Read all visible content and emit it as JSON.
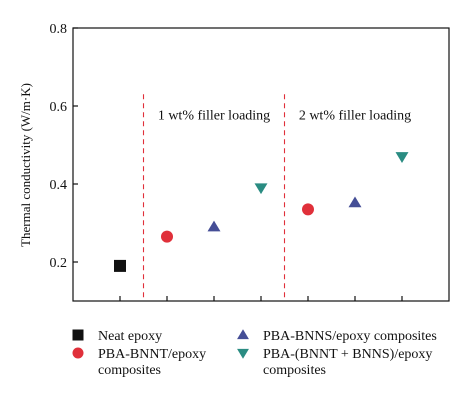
{
  "chart_data": {
    "type": "scatter",
    "ylabel": "Thermal conductivity (W/m·K)",
    "ylim": [
      0.1,
      0.8
    ],
    "yticks": [
      0.2,
      0.4,
      0.6,
      0.8
    ],
    "ytick_labels": [
      "0.2",
      "0.4",
      "0.6",
      "0.8"
    ],
    "xlim": [
      0,
      8
    ],
    "xticks": [
      1,
      2,
      3,
      4,
      5,
      6,
      7
    ],
    "grid": false,
    "regions": [
      {
        "label": "1 wt% filler loading",
        "x_start": 1.5,
        "x_end": 4.5
      },
      {
        "label": "2 wt% filler loading",
        "x_start": 4.5,
        "x_end": 7.5
      }
    ],
    "separator_color": "#e0303a",
    "series": [
      {
        "name": "Neat epoxy",
        "marker": "square",
        "color": "#111111",
        "points": [
          {
            "x": 1,
            "y": 0.19
          }
        ]
      },
      {
        "name": "PBA-BNNT/epoxy composites",
        "legend_lines": [
          "PBA-BNNT/epoxy",
          "composites"
        ],
        "marker": "circle",
        "color": "#e0303a",
        "points": [
          {
            "x": 2,
            "y": 0.265
          },
          {
            "x": 5,
            "y": 0.335
          }
        ]
      },
      {
        "name": "PBA-BNNS/epoxy composites",
        "legend_lines": [
          "PBA-BNNS/epoxy composites"
        ],
        "marker": "triangle-up",
        "color": "#454e96",
        "points": [
          {
            "x": 3,
            "y": 0.29
          },
          {
            "x": 6,
            "y": 0.352
          }
        ]
      },
      {
        "name": "PBA-(BNNT + BNNS)/epoxy composites",
        "legend_lines": [
          "PBA-(BNNT + BNNS)/epoxy",
          "composites"
        ],
        "marker": "triangle-down",
        "color": "#2a8c82",
        "points": [
          {
            "x": 4,
            "y": 0.39
          },
          {
            "x": 7,
            "y": 0.47
          }
        ]
      }
    ]
  }
}
